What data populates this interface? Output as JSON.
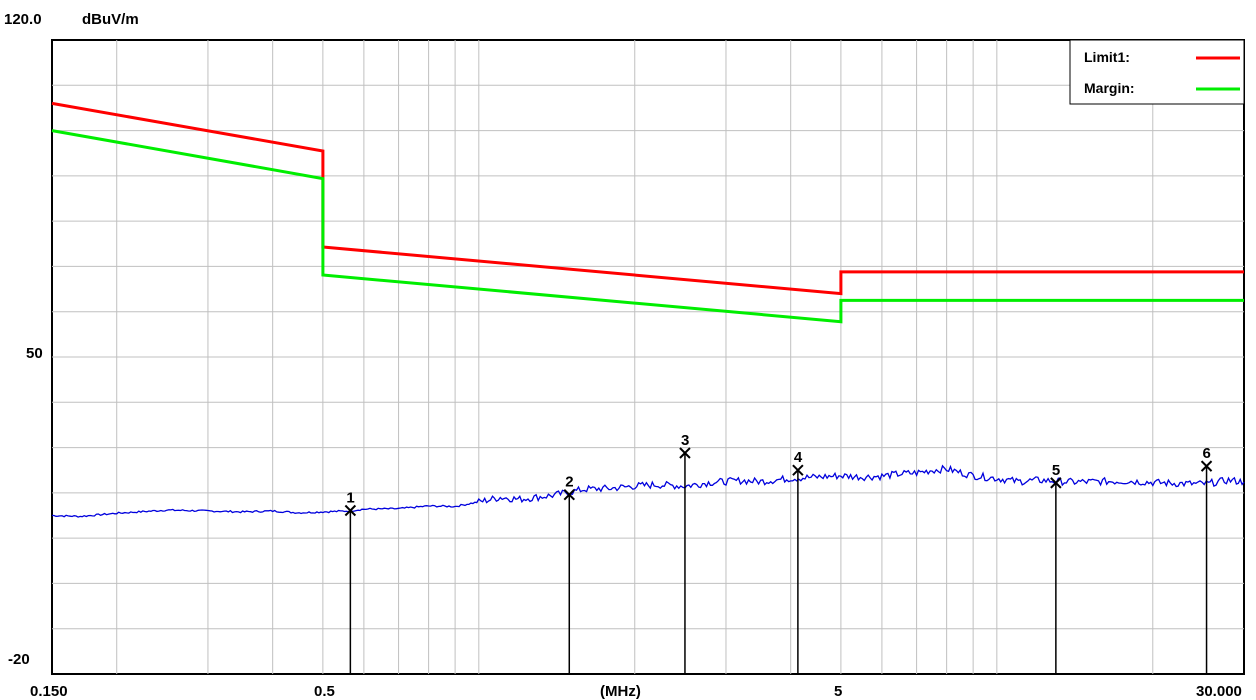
{
  "chart_data": {
    "type": "line",
    "y_unit": "dBuV/m",
    "x_unit": "(MHz)",
    "x_scale": "log",
    "xlim": [
      0.15,
      30.0
    ],
    "ylim": [
      -20,
      120
    ],
    "y_tick_labels": [
      "120.0",
      "50",
      "-20"
    ],
    "x_tick_labels": [
      "0.150",
      "0.5",
      "(MHz)",
      "5",
      "30.000"
    ],
    "grid": true,
    "legend": {
      "placement": "top-right",
      "entries": [
        {
          "name": "Limit1:",
          "color": "#ff0000"
        },
        {
          "name": "Margin:",
          "color": "#00ee00"
        }
      ]
    },
    "series": [
      {
        "name": "Limit1:",
        "color": "#ff0000",
        "x": [
          0.15,
          0.5,
          0.5,
          5.0,
          5.0,
          30.0
        ],
        "y": [
          106.0,
          95.5,
          74.3,
          64.0,
          68.8,
          68.8
        ]
      },
      {
        "name": "Margin:",
        "color": "#00ee00",
        "x": [
          0.15,
          0.5,
          0.5,
          5.0,
          5.0,
          30.0
        ],
        "y": [
          100.0,
          89.4,
          68.1,
          57.8,
          62.5,
          62.5
        ]
      },
      {
        "name": "",
        "color": "#0000dd",
        "x": [
          0.15,
          0.17,
          0.2,
          0.25,
          0.3,
          0.35,
          0.4,
          0.45,
          0.5,
          0.56,
          0.6,
          0.7,
          0.8,
          0.9,
          1.0,
          1.1,
          1.2,
          1.4,
          1.6,
          1.8,
          2.0,
          2.2,
          2.5,
          2.8,
          3.0,
          3.2,
          3.5,
          4.0,
          4.5,
          5.0,
          5.5,
          6.0,
          6.5,
          7.0,
          7.5,
          8.0,
          8.5,
          9.0,
          10.0,
          11.0,
          12.0,
          14.0,
          16.0,
          18.0,
          20.0,
          22.0,
          24.0,
          25.6,
          26.0,
          27.0,
          28.0,
          29.0,
          30.0
        ],
        "y": [
          15.0,
          14.8,
          15.5,
          16.2,
          16.0,
          15.8,
          16.0,
          15.6,
          15.8,
          16.0,
          16.4,
          16.5,
          17.1,
          17.0,
          18.0,
          19.0,
          18.6,
          19.5,
          20.8,
          21.0,
          21.5,
          21.8,
          21.5,
          22.3,
          22.5,
          22.7,
          22.5,
          23.2,
          23.5,
          23.8,
          23.5,
          23.7,
          24.2,
          24.4,
          25.0,
          25.3,
          24.5,
          23.8,
          23.2,
          22.5,
          22.8,
          22.4,
          22.5,
          22.6,
          22.3,
          22.1,
          22.0,
          22.0,
          22.2,
          22.5,
          22.8,
          22.6,
          22.4
        ]
      }
    ],
    "markers": [
      {
        "label": "1",
        "freq": 0.565,
        "level": 16.1
      },
      {
        "label": "2",
        "freq": 1.495,
        "level": 19.6
      },
      {
        "label": "3",
        "freq": 2.5,
        "level": 28.8
      },
      {
        "label": "4",
        "freq": 4.13,
        "level": 25.0
      },
      {
        "label": "5",
        "freq": 13.0,
        "level": 22.2
      },
      {
        "label": "6",
        "freq": 25.4,
        "level": 25.9
      }
    ]
  }
}
